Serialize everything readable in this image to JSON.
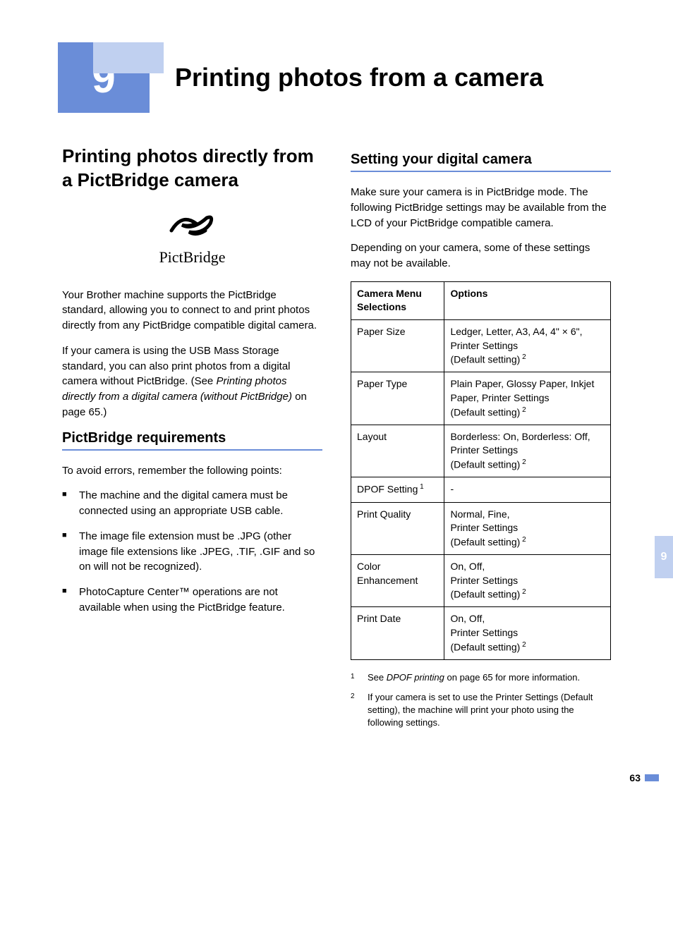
{
  "chapter": {
    "number": "9",
    "title": "Printing photos from a camera"
  },
  "leftCol": {
    "h2": "Printing photos directly from a PictBridge camera",
    "logoText": "PictBridge",
    "p1": "Your Brother machine supports the PictBridge standard, allowing you to connect to and print photos directly from any PictBridge compatible digital camera.",
    "p2a": "If your camera is using the USB Mass Storage standard, you can also print photos from a digital camera without PictBridge. (See ",
    "p2italic": "Printing photos directly from a digital camera (without PictBridge)",
    "p2b": " on page 65.)",
    "h3": "PictBridge requirements",
    "p3": "To avoid errors, remember the following points:",
    "bullets": [
      "The machine and the digital camera must be connected using an appropriate USB cable.",
      "The image file extension must be .JPG (other image file extensions like .JPEG, .TIF, .GIF and so on will not be recognized).",
      "PhotoCapture Center™ operations are not available when using the PictBridge feature."
    ]
  },
  "rightCol": {
    "h3": "Setting your digital camera",
    "p1": "Make sure your camera is in PictBridge mode. The following PictBridge settings may be available from the LCD of your PictBridge compatible camera.",
    "p2": "Depending on your camera, some of these settings may not be available.",
    "table": {
      "headers": [
        "Camera Menu Selections",
        "Options"
      ],
      "rows": [
        {
          "label": "Paper Size",
          "sup": "",
          "opts": [
            "Ledger, Letter, A3, A4, 4\" × 6\",",
            "Printer Settings",
            "(Default setting)"
          ],
          "optSup": "2"
        },
        {
          "label": "Paper Type",
          "sup": "",
          "opts": [
            "Plain Paper, Glossy Paper, Inkjet Paper, Printer Settings",
            "(Default setting)"
          ],
          "optSup": "2"
        },
        {
          "label": "Layout",
          "sup": "",
          "opts": [
            "Borderless: On, Borderless: Off,",
            "Printer Settings",
            "(Default setting)"
          ],
          "optSup": "2"
        },
        {
          "label": "DPOF Setting",
          "sup": "1",
          "opts": [
            "-"
          ],
          "optSup": ""
        },
        {
          "label": "Print Quality",
          "sup": "",
          "opts": [
            "Normal, Fine,",
            "Printer Settings",
            "(Default setting)"
          ],
          "optSup": "2"
        },
        {
          "label": "Color Enhancement",
          "sup": "",
          "opts": [
            "On, Off,",
            "Printer Settings",
            "(Default setting)"
          ],
          "optSup": "2"
        },
        {
          "label": "Print Date",
          "sup": "",
          "opts": [
            "On, Off,",
            "Printer Settings",
            "(Default setting)"
          ],
          "optSup": "2"
        }
      ]
    },
    "footnotes": [
      {
        "num": "1",
        "a": "See ",
        "italic": "DPOF printing",
        "b": " on page 65 for more information."
      },
      {
        "num": "2",
        "a": "If your camera is set to use the Printer Settings (Default setting), the machine will print your photo using the following settings.",
        "italic": "",
        "b": ""
      }
    ]
  },
  "sideTab": "9",
  "pageNumber": "63",
  "colors": {
    "accent": "#6a8dd8",
    "lightAccent": "#c0d0f0"
  }
}
